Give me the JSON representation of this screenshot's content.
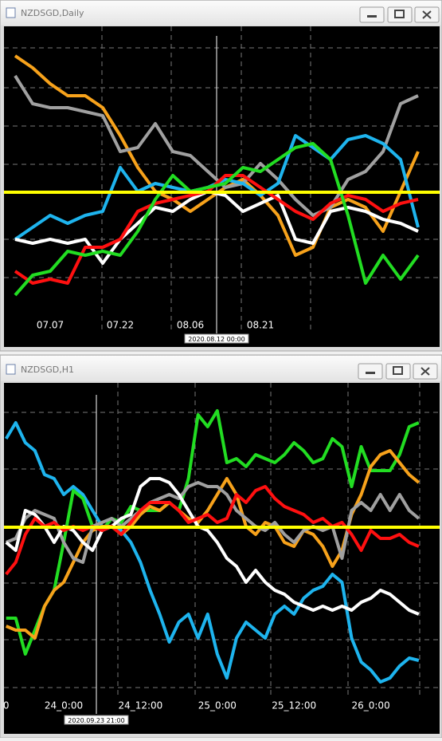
{
  "chart_data": [
    {
      "type": "line",
      "title": "NZDSGD,Daily",
      "crosshair_label": "2020.08.12 00:00",
      "categories": [
        null,
        null,
        "07.07",
        null,
        null,
        null,
        "07.22",
        null,
        null,
        null,
        "08.06",
        null,
        null,
        null,
        "08.21",
        null,
        null,
        null,
        null,
        null,
        null,
        null,
        null,
        null
      ],
      "ylim": [
        5,
        365
      ],
      "level": 159,
      "level_color": "#ffff00",
      "series": [
        {
          "color": "#f7a21b",
          "values": [
            330,
            315,
            295,
            280,
            280,
            265,
            230,
            190,
            160,
            150,
            135,
            150,
            165,
            175,
            155,
            130,
            80,
            90,
            140,
            150,
            140,
            110,
            160,
            210
          ]
        },
        {
          "color": "#a0a0a0",
          "values": [
            305,
            270,
            265,
            265,
            260,
            255,
            210,
            215,
            245,
            210,
            205,
            185,
            165,
            170,
            195,
            175,
            150,
            130,
            140,
            175,
            185,
            210,
            270,
            280
          ]
        },
        {
          "color": "#1eb4ee",
          "values": [
            100,
            115,
            130,
            120,
            130,
            135,
            190,
            160,
            170,
            165,
            160,
            165,
            175,
            170,
            155,
            170,
            230,
            215,
            200,
            225,
            230,
            220,
            200,
            115
          ]
        },
        {
          "color": "#ffffff",
          "values": [
            100,
            95,
            100,
            95,
            100,
            70,
            100,
            120,
            140,
            135,
            150,
            160,
            155,
            135,
            145,
            155,
            100,
            95,
            135,
            140,
            135,
            125,
            120,
            110
          ]
        },
        {
          "color": "#ff1010",
          "values": [
            60,
            45,
            50,
            45,
            90,
            90,
            100,
            135,
            145,
            150,
            155,
            160,
            180,
            180,
            165,
            150,
            135,
            125,
            145,
            155,
            150,
            135,
            145,
            150
          ]
        },
        {
          "color": "#22dd22",
          "values": [
            30,
            55,
            60,
            85,
            80,
            85,
            80,
            110,
            150,
            180,
            160,
            165,
            170,
            190,
            185,
            200,
            215,
            220,
            200,
            130,
            45,
            80,
            50,
            80
          ]
        }
      ]
    },
    {
      "type": "line",
      "title": "NZDSGD,H1",
      "crosshair_label": "2020.09.23 21:00",
      "categories": [
        "0",
        null,
        null,
        null,
        null,
        null,
        "24_0:00",
        null,
        null,
        null,
        null,
        null,
        null,
        null,
        "24_12:00",
        null,
        null,
        null,
        null,
        null,
        null,
        null,
        "25_0:00",
        null,
        null,
        null,
        null,
        null,
        null,
        null,
        "25_12:00",
        null,
        null,
        null,
        null,
        null,
        null,
        null,
        "26_0:00",
        null,
        null,
        null,
        null,
        null
      ],
      "ylim": [
        20,
        420
      ],
      "level": 239,
      "level_color": "#ffff00",
      "series": [
        {
          "color": "#1eb4ee",
          "values": [
            350,
            370,
            345,
            335,
            305,
            300,
            280,
            290,
            280,
            260,
            240,
            240,
            235,
            220,
            195,
            160,
            130,
            95,
            120,
            130,
            100,
            130,
            80,
            50,
            100,
            120,
            110,
            100,
            130,
            140,
            130,
            150,
            160,
            165,
            180,
            170,
            100,
            70,
            60,
            45,
            50,
            65,
            75,
            72
          ]
        },
        {
          "color": "#22dd22",
          "values": [
            125,
            125,
            80,
            110,
            140,
            160,
            220,
            285,
            275,
            240,
            235,
            250,
            245,
            265,
            260,
            260,
            260,
            270,
            260,
            300,
            380,
            365,
            385,
            320,
            325,
            315,
            330,
            325,
            320,
            330,
            345,
            335,
            320,
            325,
            350,
            340,
            290,
            340,
            310,
            310,
            310,
            330,
            365,
            370
          ]
        },
        {
          "color": "#f7a21b",
          "values": [
            115,
            110,
            110,
            100,
            140,
            160,
            170,
            195,
            220,
            235,
            240,
            240,
            230,
            240,
            255,
            265,
            260,
            270,
            260,
            250,
            245,
            260,
            280,
            300,
            280,
            240,
            230,
            245,
            240,
            220,
            215,
            235,
            230,
            215,
            190,
            210,
            255,
            280,
            315,
            330,
            335,
            320,
            305,
            295
          ]
        },
        {
          "color": "#a0a0a0",
          "values": [
            220,
            225,
            250,
            260,
            255,
            250,
            220,
            200,
            195,
            240,
            245,
            250,
            240,
            250,
            260,
            270,
            275,
            280,
            275,
            290,
            295,
            290,
            290,
            280,
            260,
            250,
            240,
            235,
            245,
            230,
            220,
            235,
            240,
            235,
            240,
            200,
            260,
            270,
            260,
            280,
            260,
            280,
            260,
            250
          ]
        },
        {
          "color": "#ffffff",
          "values": [
            220,
            210,
            260,
            255,
            240,
            220,
            240,
            235,
            220,
            210,
            235,
            240,
            250,
            255,
            290,
            300,
            300,
            295,
            280,
            260,
            240,
            235,
            220,
            200,
            190,
            170,
            185,
            170,
            160,
            155,
            145,
            140,
            135,
            140,
            135,
            140,
            135,
            145,
            150,
            160,
            155,
            145,
            135,
            130
          ]
        },
        {
          "color": "#ff1010",
          "values": [
            180,
            195,
            230,
            250,
            240,
            245,
            235,
            240,
            235,
            240,
            235,
            240,
            230,
            245,
            260,
            270,
            270,
            270,
            260,
            245,
            250,
            255,
            245,
            250,
            280,
            270,
            285,
            290,
            275,
            265,
            260,
            255,
            245,
            250,
            240,
            245,
            230,
            210,
            235,
            225,
            225,
            230,
            220,
            215
          ]
        }
      ]
    }
  ]
}
